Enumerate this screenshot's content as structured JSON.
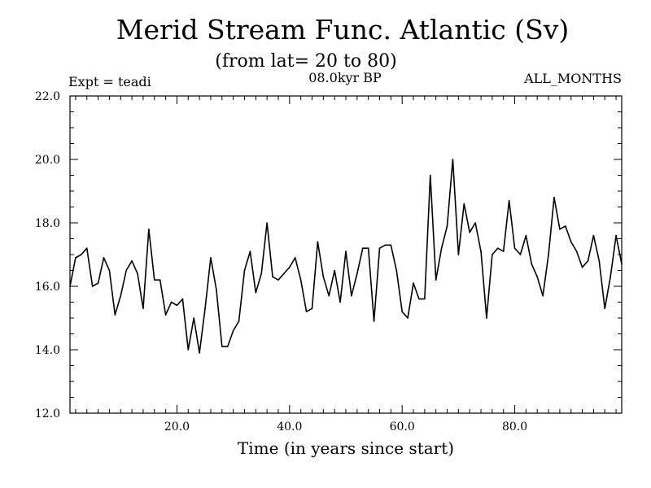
{
  "chart_data": {
    "type": "line",
    "title": "Merid Stream Func. Atlantic (Sv)",
    "subtitle": "(from lat= 20 to 80)",
    "left_label": "Expt = teadi",
    "center_label": "08.0kyr BP",
    "right_label": "ALL_MONTHS",
    "xlabel": "Time (in years since start)",
    "ylabel": "",
    "xlim": [
      1,
      99
    ],
    "ylim": [
      12.0,
      22.0
    ],
    "x_ticks": [
      "20.0",
      "40.0",
      "60.0",
      "80.0"
    ],
    "y_ticks": [
      "12.0",
      "14.0",
      "16.0",
      "18.0",
      "20.0",
      "22.0"
    ],
    "series": [
      {
        "name": "Merid Stream Func. Atlantic",
        "x": [
          1,
          2,
          3,
          4,
          5,
          6,
          7,
          8,
          9,
          10,
          11,
          12,
          13,
          14,
          15,
          16,
          17,
          18,
          19,
          20,
          21,
          22,
          23,
          24,
          25,
          26,
          27,
          28,
          29,
          30,
          31,
          32,
          33,
          34,
          35,
          36,
          37,
          38,
          39,
          40,
          41,
          42,
          43,
          44,
          45,
          46,
          47,
          48,
          49,
          50,
          51,
          52,
          53,
          54,
          55,
          56,
          57,
          58,
          59,
          60,
          61,
          62,
          63,
          64,
          65,
          66,
          67,
          68,
          69,
          70,
          71,
          72,
          73,
          74,
          75,
          76,
          77,
          78,
          79,
          80,
          81,
          82,
          83,
          84,
          85,
          86,
          87,
          88,
          89,
          90,
          91,
          92,
          93,
          94,
          95,
          96,
          97,
          98,
          99
        ],
        "values": [
          16.0,
          16.9,
          17.0,
          17.2,
          16.0,
          16.1,
          16.9,
          16.5,
          15.1,
          15.7,
          16.5,
          16.8,
          16.4,
          15.3,
          17.8,
          16.2,
          16.2,
          15.1,
          15.5,
          15.4,
          15.6,
          14.0,
          15.0,
          13.9,
          15.3,
          16.9,
          15.9,
          14.1,
          14.1,
          14.6,
          14.9,
          16.5,
          17.1,
          15.8,
          16.4,
          18.0,
          16.3,
          16.2,
          16.4,
          16.6,
          16.9,
          16.2,
          15.2,
          15.3,
          17.4,
          16.3,
          15.7,
          16.5,
          15.5,
          17.1,
          15.7,
          16.4,
          17.2,
          17.2,
          14.9,
          17.2,
          17.3,
          17.3,
          16.5,
          15.2,
          15.0,
          16.1,
          15.6,
          15.6,
          19.5,
          16.2,
          17.2,
          17.9,
          20.0,
          17.0,
          18.6,
          17.7,
          18.0,
          17.1,
          15.0,
          17.0,
          17.2,
          17.1,
          18.7,
          17.2,
          17.0,
          17.6,
          16.7,
          16.3,
          15.7,
          17.0,
          18.8,
          17.8,
          17.9,
          17.4,
          17.1,
          16.6,
          16.8,
          17.6,
          16.8,
          15.3,
          16.3,
          17.6,
          16.7
        ]
      }
    ]
  }
}
